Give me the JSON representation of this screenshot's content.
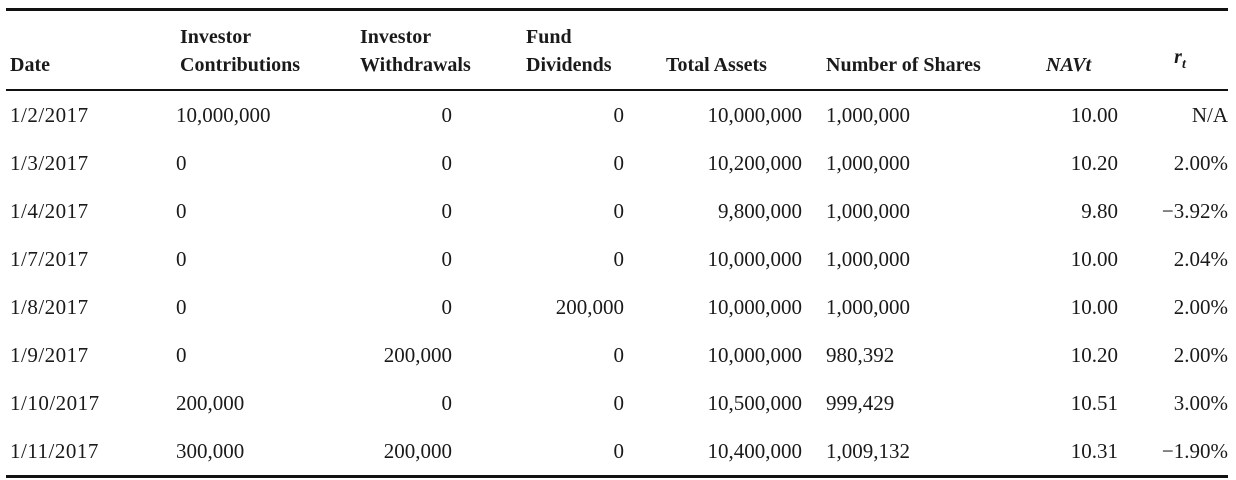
{
  "table": {
    "headers": {
      "date": "Date",
      "contrib_l1": "Investor",
      "contrib_l2": "Contributions",
      "withdraw_l1": "Investor",
      "withdraw_l2": "Withdrawals",
      "div_l1": "Fund",
      "div_l2": "Dividends",
      "total_assets": "Total Assets",
      "num_shares": "Number of Shares",
      "navt": "NAVt",
      "rt_base": "r",
      "rt_sub": "t"
    },
    "rows": [
      [
        "1/2/2017",
        "10,000,000",
        "0",
        "0",
        "10,000,000",
        "1,000,000",
        "10.00",
        "N/A"
      ],
      [
        "1/3/2017",
        "0",
        "0",
        "0",
        "10,200,000",
        "1,000,000",
        "10.20",
        "2.00%"
      ],
      [
        "1/4/2017",
        "0",
        "0",
        "0",
        "9,800,000",
        "1,000,000",
        "9.80",
        "−3.92%"
      ],
      [
        "1/7/2017",
        "0",
        "0",
        "0",
        "10,000,000",
        "1,000,000",
        "10.00",
        "2.04%"
      ],
      [
        "1/8/2017",
        "0",
        "0",
        "200,000",
        "10,000,000",
        "1,000,000",
        "10.00",
        "2.00%"
      ],
      [
        "1/9/2017",
        "0",
        "200,000",
        "0",
        "10,000,000",
        "980,392",
        "10.20",
        "2.00%"
      ],
      [
        "1/10/2017",
        "200,000",
        "0",
        "0",
        "10,500,000",
        "999,429",
        "10.51",
        "3.00%"
      ],
      [
        "1/11/2017",
        "300,000",
        "200,000",
        "0",
        "10,400,000",
        "1,009,132",
        "10.31",
        "−1.90%"
      ]
    ]
  }
}
